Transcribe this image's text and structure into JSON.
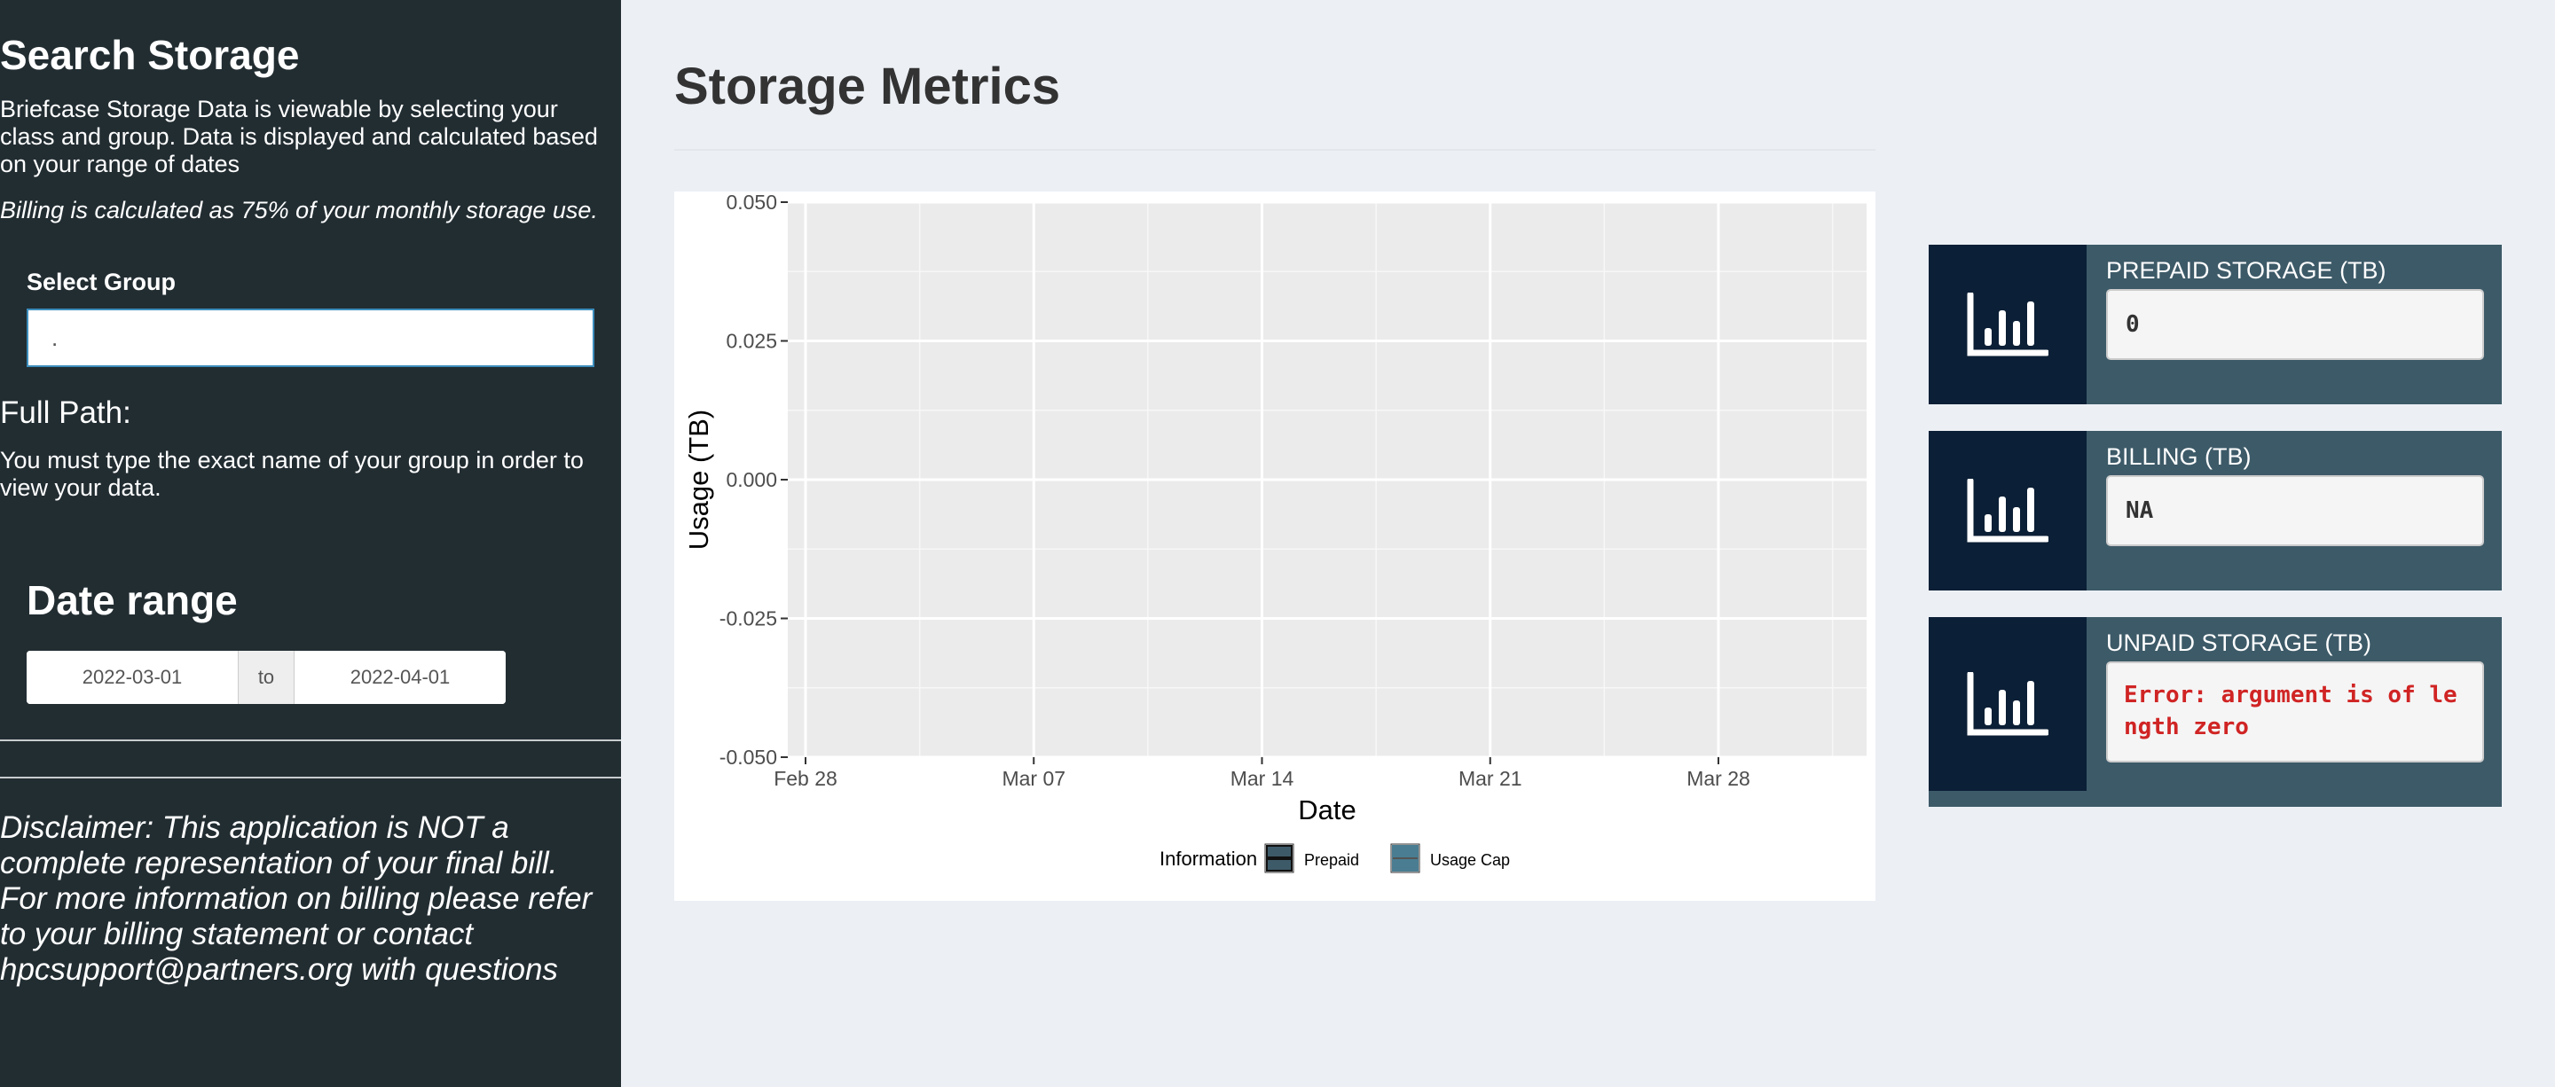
{
  "sidebar": {
    "title": "Search Storage",
    "description": "Briefcase Storage Data is viewable by selecting your class and group. Data is displayed and calculated based on your range of dates",
    "billing_note": "Billing is calculated as 75% of your monthly storage use.",
    "select_group_label": "Select Group",
    "select_group_value": ".",
    "full_path_label": "Full Path:",
    "must_type_note": "You must type the exact name of your group in order to view your data.",
    "date_range_title": "Date range",
    "date_start": "2022-03-01",
    "date_separator": "to",
    "date_end": "2022-04-01",
    "disclaimer": "Disclaimer: This application is NOT a complete representation of your final bill. For more information on billing please refer to your billing statement or contact hpcsupport@partners.org with questions"
  },
  "main": {
    "title": "Storage Metrics"
  },
  "chart_data": {
    "type": "line",
    "title": "",
    "xlabel": "Date",
    "ylabel": "Usage (TB)",
    "x_ticks": [
      "Feb 28",
      "Mar 07",
      "Mar 14",
      "Mar 21",
      "Mar 28"
    ],
    "y_ticks": [
      "0.050",
      "0.025",
      "0.000",
      "-0.025",
      "-0.050"
    ],
    "ylim": [
      -0.05,
      0.05
    ],
    "xlim": [
      "2022-02-28",
      "2022-04-01"
    ],
    "grid": true,
    "legend_title": "Information",
    "legend_position": "bottom",
    "series": [
      {
        "name": "Prepaid",
        "values": [],
        "color": "#3d5a68"
      },
      {
        "name": "Usage Cap",
        "values": [],
        "color": "#4a7d91"
      }
    ]
  },
  "value_boxes": [
    {
      "label": "PREPAID STORAGE (TB)",
      "value": "0",
      "icon": "bar-chart-icon",
      "error": false
    },
    {
      "label": "BILLING (TB)",
      "value": "NA",
      "icon": "bar-chart-icon",
      "error": false
    },
    {
      "label": "UNPAID STORAGE (TB)",
      "value": "Error: argument is of length zero",
      "icon": "bar-chart-icon",
      "error": true
    }
  ],
  "colors": {
    "sidebar_bg": "#222d32",
    "content_bg": "#ecf0f5",
    "icon_bg": "#0b1f36",
    "box_bg": "#3d5a68",
    "error_text": "#d02424"
  }
}
